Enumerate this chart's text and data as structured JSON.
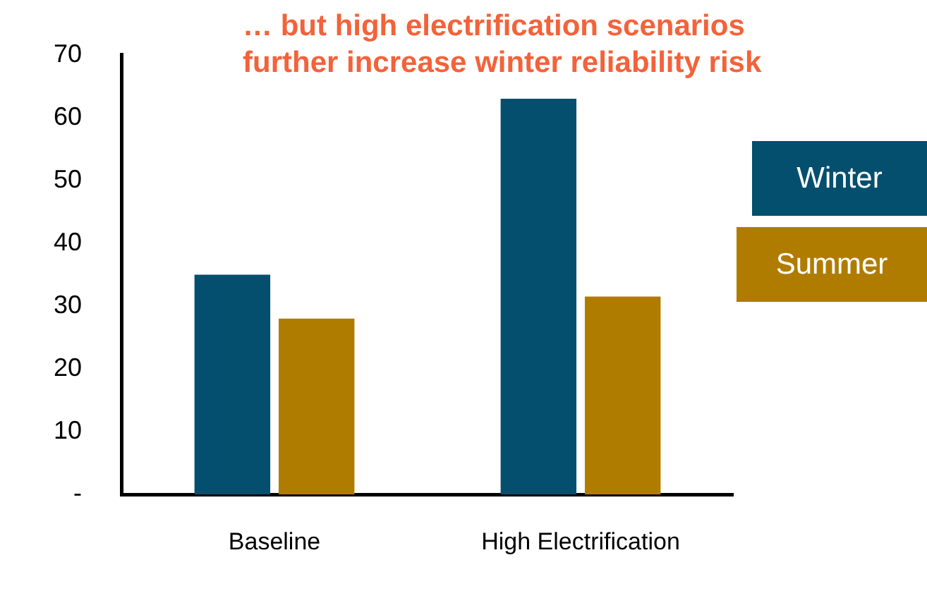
{
  "chart_data": {
    "type": "bar",
    "title": "… but high electrification scenarios further increase winter reliability risk",
    "categories": [
      "Baseline",
      "High Electrification"
    ],
    "series": [
      {
        "name": "Winter",
        "color": "#044f6e",
        "values": [
          35,
          63
        ]
      },
      {
        "name": "Summer",
        "color": "#b07c00",
        "values": [
          28,
          31.5
        ]
      }
    ],
    "ylim": [
      0,
      70
    ],
    "yticks": [
      {
        "value": 0,
        "label": "-"
      },
      10,
      20,
      30,
      40,
      50,
      60,
      70
    ],
    "grid": false,
    "legend": "right"
  }
}
